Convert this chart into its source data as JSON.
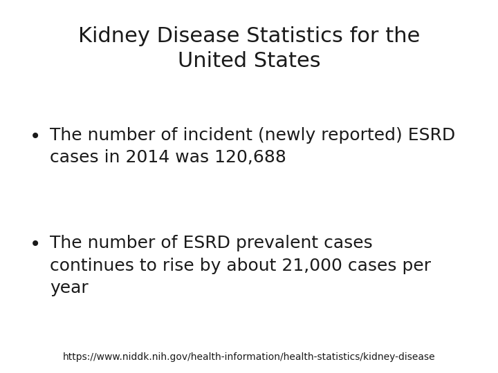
{
  "title_line1": "Kidney Disease Statistics for the",
  "title_line2": "United States",
  "bullet1_line1": "The number of incident (newly reported) ESRD",
  "bullet1_line2": "cases in 2014 was 120,688",
  "bullet2_line1": "The number of ESRD prevalent cases",
  "bullet2_line2": "continues to rise by about 21,000 cases per",
  "bullet2_line3": "year",
  "footer": "https://www.niddk.nih.gov/health-information/health-statistics/kidney-disease",
  "background_color": "#ffffff",
  "text_color": "#1a1a1a",
  "title_fontsize": 22,
  "bullet_fontsize": 18,
  "footer_fontsize": 10
}
